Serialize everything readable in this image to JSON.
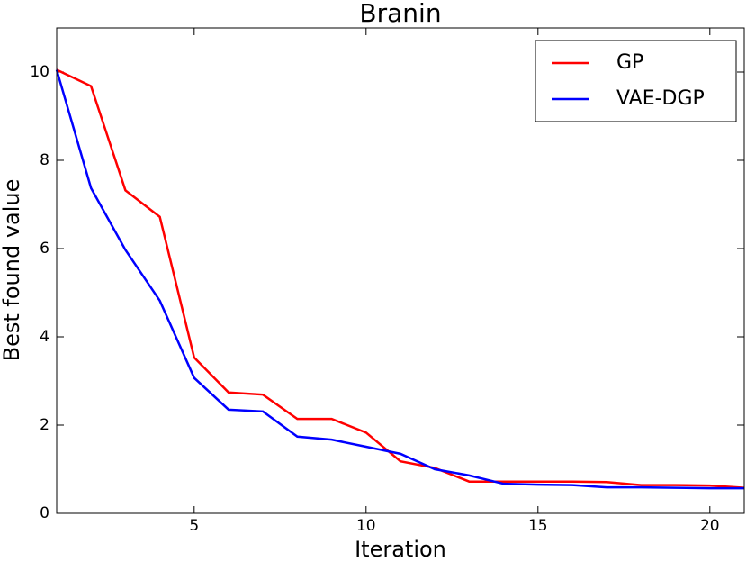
{
  "chart_data": {
    "type": "line",
    "title": "Branin",
    "x_label": "Iteration",
    "y_label": "Best found value",
    "x": [
      1,
      2,
      3,
      4,
      5,
      6,
      7,
      8,
      9,
      10,
      11,
      12,
      13,
      14,
      15,
      16,
      17,
      18,
      19,
      20,
      21
    ],
    "series": [
      {
        "name": "GP",
        "color": "#ff0000",
        "values": [
          10.05,
          9.68,
          7.32,
          6.72,
          3.53,
          2.74,
          2.69,
          2.14,
          2.14,
          1.83,
          1.18,
          1.03,
          0.72,
          0.72,
          0.72,
          0.72,
          0.71,
          0.64,
          0.64,
          0.63,
          0.58
        ]
      },
      {
        "name": "VAE-DGP",
        "color": "#0000ff",
        "values": [
          10.05,
          7.37,
          5.97,
          4.82,
          3.07,
          2.35,
          2.31,
          1.74,
          1.67,
          1.51,
          1.35,
          1.0,
          0.86,
          0.67,
          0.65,
          0.64,
          0.59,
          0.59,
          0.58,
          0.57,
          0.57
        ]
      }
    ],
    "xlim": [
      1,
      21
    ],
    "xticks": [
      5,
      10,
      15,
      20
    ],
    "ylim": [
      0,
      11
    ],
    "yticks": [
      0,
      2,
      4,
      6,
      8,
      10
    ],
    "legend": "upper right"
  }
}
